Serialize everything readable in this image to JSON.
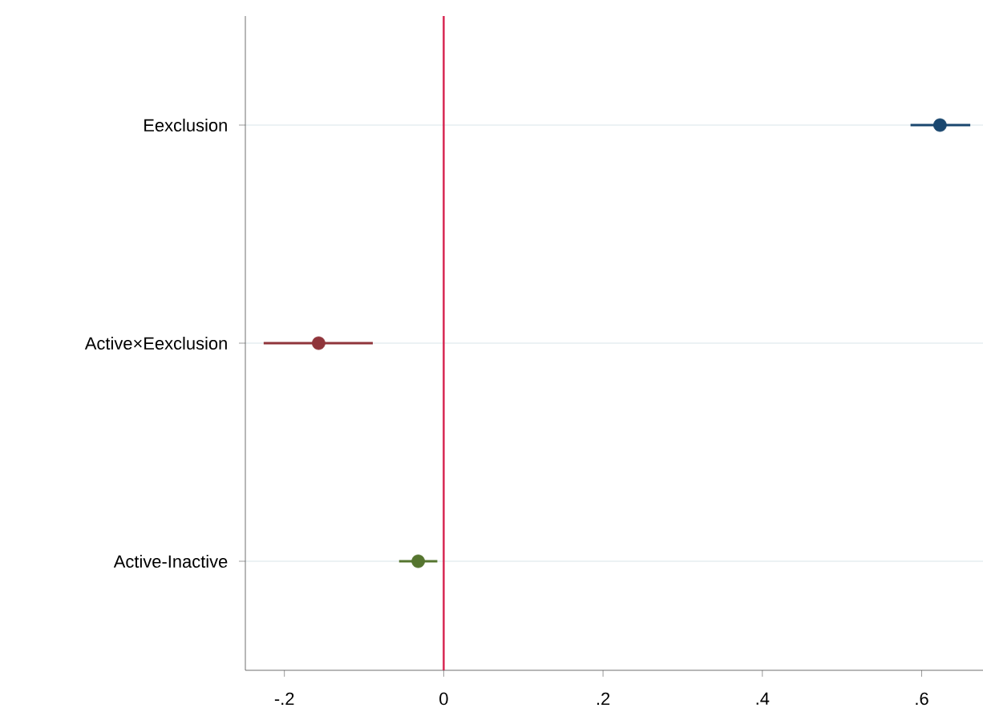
{
  "chart_data": {
    "type": "scatter",
    "orientation": "horizontal",
    "categories": [
      "Eexclusion",
      "Active×Eexclusion",
      "Active-Inactive"
    ],
    "values": [
      0.623,
      -0.157,
      -0.032
    ],
    "errors": [
      [
        0.586,
        0.661
      ],
      [
        -0.226,
        -0.089
      ],
      [
        -0.056,
        -0.008
      ]
    ],
    "colors": [
      "#1a476f",
      "#90353b",
      "#55752f"
    ],
    "xlim": [
      -0.249,
      0.677
    ],
    "xticks": [
      {
        "value": -0.2,
        "label": "-.2"
      },
      0,
      {
        "value": 0.2,
        "label": ".2"
      },
      {
        "value": 0.4,
        "label": ".4"
      },
      {
        "value": 0.6,
        "label": ".6"
      }
    ],
    "ref_lines": [
      {
        "axis": "x",
        "value": 0,
        "color": "#d6204d"
      }
    ],
    "grid": "y",
    "marker": "circle"
  }
}
